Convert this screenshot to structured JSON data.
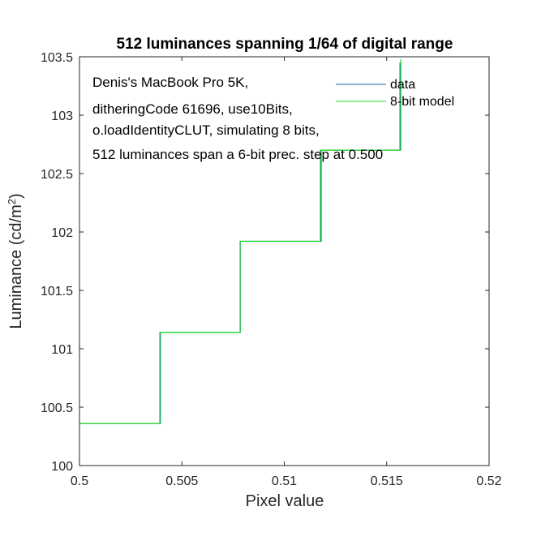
{
  "chart_data": {
    "type": "line",
    "title": "512 luminances spanning 1/64 of digital range",
    "xlabel": "Pixel value",
    "ylabel_main": "Luminance (cd/m",
    "ylabel_sup": "2",
    "ylabel_close": ")",
    "xlim": [
      0.5,
      0.52
    ],
    "ylim": [
      100,
      103.5
    ],
    "xticks": [
      0.5,
      0.505,
      0.51,
      0.515,
      0.52
    ],
    "xtick_labels": [
      "0.5",
      "0.505",
      "0.51",
      "0.515",
      "0.52"
    ],
    "yticks": [
      100,
      100.5,
      101,
      101.5,
      102,
      102.5,
      103,
      103.5
    ],
    "ytick_labels": [
      "100",
      "100.5",
      "101",
      "101.5",
      "102",
      "102.5",
      "103",
      "103.5"
    ],
    "grid": false,
    "legend_position": "top-right",
    "annotation_lines": [
      "Denis's MacBook Pro 5K,",
      "ditheringCode 61696, use10Bits,",
      "o.loadIdentityCLUT, simulating 8 bits,",
      "512 luminances span a 6-bit prec. step at 0.500"
    ],
    "series": [
      {
        "name": "data",
        "color": "#0a6e9c",
        "x": [
          0.5,
          0.50395,
          0.50395,
          0.50785,
          0.50785,
          0.5118,
          0.5118,
          0.51565,
          0.51565
        ],
        "y": [
          100.36,
          100.36,
          101.14,
          101.14,
          101.92,
          101.92,
          102.7,
          102.7,
          103.45
        ]
      },
      {
        "name": "8-bit model",
        "color": "#22dd22",
        "x": [
          0.5,
          0.50392,
          0.50392,
          0.50784,
          0.50784,
          0.51176,
          0.51176,
          0.51569,
          0.51569
        ],
        "y": [
          100.36,
          100.36,
          101.14,
          101.14,
          101.92,
          101.92,
          102.7,
          102.7,
          103.48
        ]
      }
    ]
  }
}
